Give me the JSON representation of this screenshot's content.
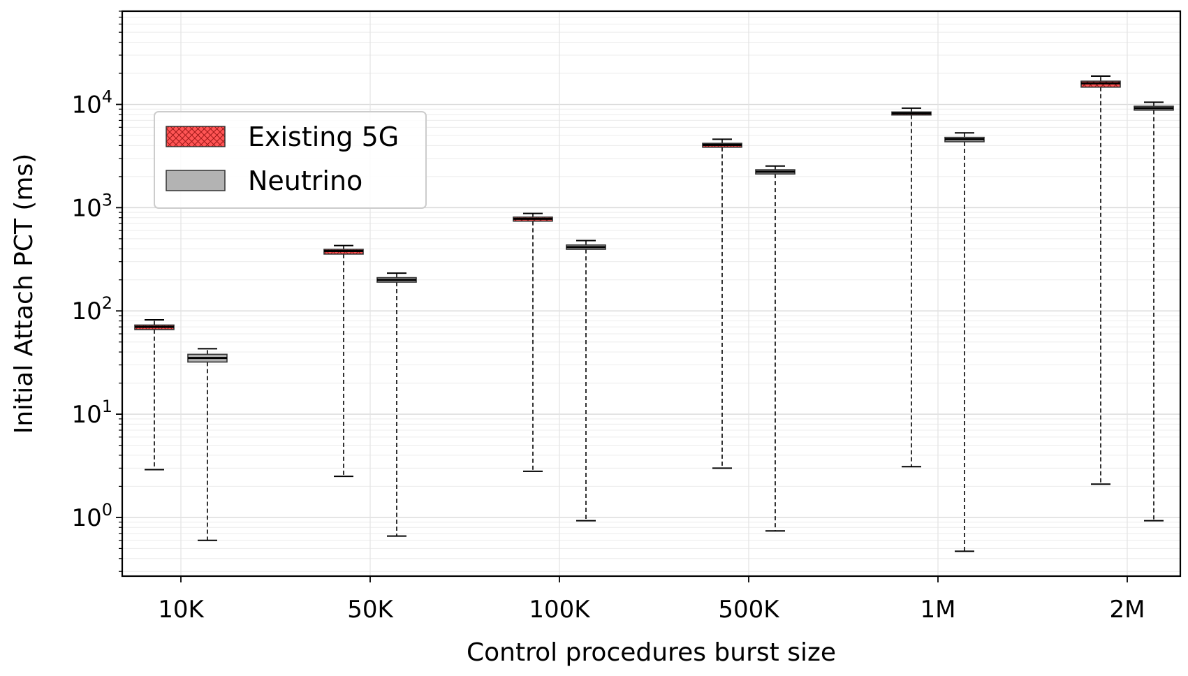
{
  "chart_data": {
    "type": "box",
    "title": "",
    "xlabel": "Control procedures burst size",
    "ylabel": "Initial Attach PCT (ms)",
    "yscale": "log",
    "ylim": [
      0.27,
      80000
    ],
    "grid": true,
    "legend_position": "upper-left",
    "categories": [
      "10K",
      "50K",
      "100K",
      "500K",
      "1M",
      "2M"
    ],
    "y_tick_labels": [
      {
        "value": 1,
        "label": "10",
        "exp": "0"
      },
      {
        "value": 10,
        "label": "10",
        "exp": "1"
      },
      {
        "value": 100,
        "label": "10",
        "exp": "2"
      },
      {
        "value": 1000,
        "label": "10",
        "exp": "3"
      },
      {
        "value": 10000,
        "label": "10",
        "exp": "4"
      }
    ],
    "series": [
      {
        "name": "Existing 5G",
        "color": "#ff5555",
        "hatch": "crosshatch",
        "boxes": [
          {
            "min": 2.9,
            "q1": 66,
            "median": 70,
            "q3": 73,
            "max": 82
          },
          {
            "min": 2.5,
            "q1": 355,
            "median": 380,
            "q3": 395,
            "max": 430
          },
          {
            "min": 2.8,
            "q1": 740,
            "median": 780,
            "q3": 810,
            "max": 880
          },
          {
            "min": 3.0,
            "q1": 3850,
            "median": 4050,
            "q3": 4200,
            "max": 4600
          },
          {
            "min": 3.1,
            "q1": 7900,
            "median": 8200,
            "q3": 8450,
            "max": 9200
          },
          {
            "min": 2.1,
            "q1": 14700,
            "median": 16000,
            "q3": 16800,
            "max": 18800
          }
        ]
      },
      {
        "name": "Neutrino",
        "color": "#b3b3b3",
        "hatch": "none",
        "boxes": [
          {
            "min": 0.6,
            "q1": 32,
            "median": 35,
            "q3": 38,
            "max": 43
          },
          {
            "min": 0.66,
            "q1": 190,
            "median": 200,
            "q3": 210,
            "max": 232
          },
          {
            "min": 0.93,
            "q1": 395,
            "median": 415,
            "q3": 435,
            "max": 480
          },
          {
            "min": 0.74,
            "q1": 2120,
            "median": 2230,
            "q3": 2330,
            "max": 2530
          },
          {
            "min": 0.47,
            "q1": 4350,
            "median": 4600,
            "q3": 4800,
            "max": 5300
          },
          {
            "min": 0.93,
            "q1": 8800,
            "median": 9200,
            "q3": 9600,
            "max": 10500
          }
        ]
      }
    ]
  }
}
